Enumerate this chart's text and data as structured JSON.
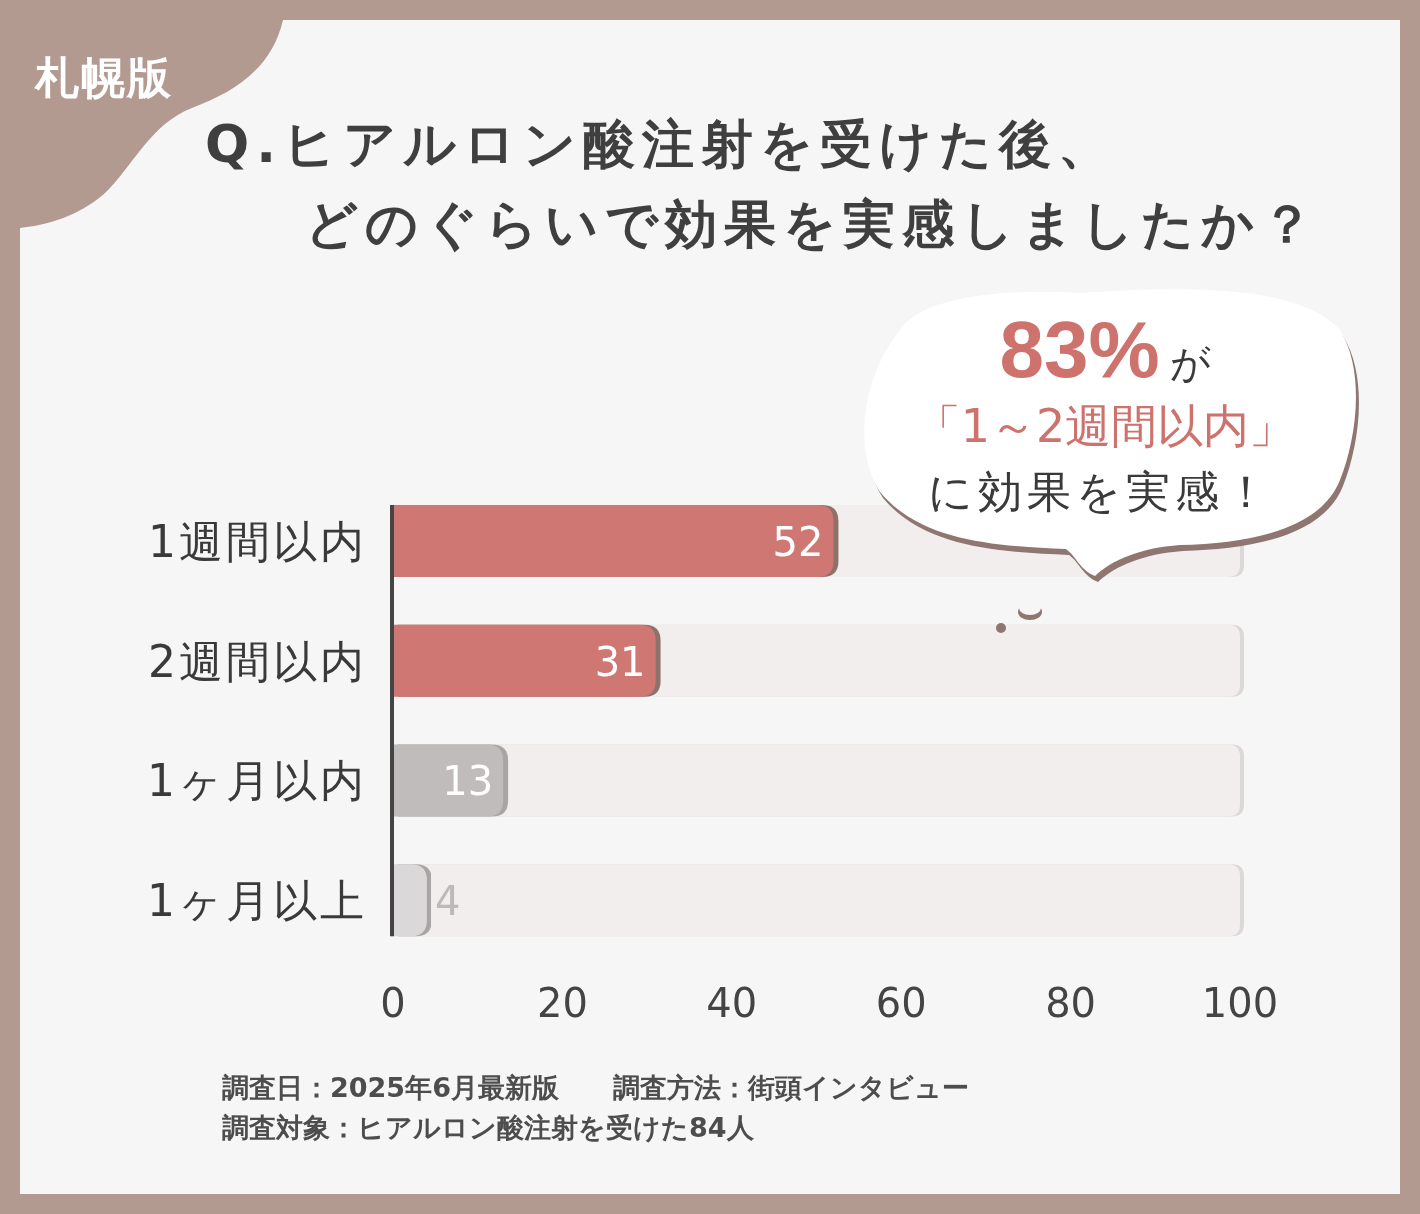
{
  "chart_data": {
    "type": "bar",
    "orientation": "horizontal",
    "title": "Q.ヒアルロン酸注射を受けた後、どのぐらいで効果を実感しましたか？",
    "subtitle": "札幌版",
    "categories": [
      "1週間以内",
      "2週間以内",
      "1ヶ月以内",
      "1ヶ月以上"
    ],
    "values": [
      52,
      31,
      13,
      4
    ],
    "colors": [
      "#cf7873",
      "#cf7873",
      "#c0bcbb",
      "#dad8d8"
    ],
    "data_labels": true,
    "xlim": [
      0,
      100
    ],
    "xticks": [
      0,
      20,
      40,
      60,
      80,
      100
    ],
    "annotations": [
      "83%",
      "が",
      "「1～2週間以内」",
      "に効果を実感！",
      "調査日：2025年6月最新版　　調査方法：街頭インタビュー",
      "調査対象：ヒアルロン酸注射を受けた84人"
    ]
  }
}
